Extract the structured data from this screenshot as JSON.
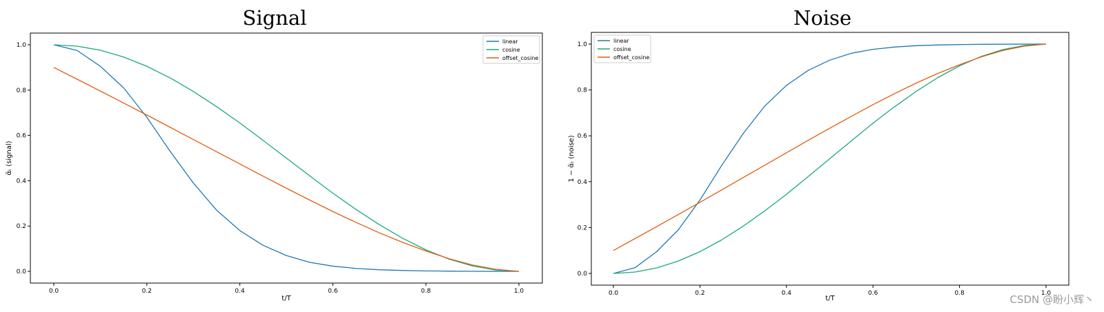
{
  "figure": {
    "watermark": "CSDN @盼小辉丶"
  },
  "chart_data": [
    {
      "type": "line",
      "title": "Signal",
      "xlabel": "t/T",
      "ylabel": "ᾱₜ (signal)",
      "xlim": [
        0.0,
        1.0
      ],
      "ylim": [
        0.0,
        1.0
      ],
      "xticks": [
        "0.0",
        "0.2",
        "0.4",
        "0.6",
        "0.8",
        "1.0"
      ],
      "yticks": [
        "0.0",
        "0.2",
        "0.4",
        "0.6",
        "0.8",
        "1.0"
      ],
      "grid": false,
      "legend_position": "top-right",
      "x": [
        0.0,
        0.05,
        0.1,
        0.15,
        0.2,
        0.25,
        0.3,
        0.35,
        0.4,
        0.45,
        0.5,
        0.55,
        0.6,
        0.65,
        0.7,
        0.75,
        0.8,
        0.85,
        0.9,
        0.95,
        1.0
      ],
      "series": [
        {
          "name": "linear",
          "color": "#1f77b4",
          "values": [
            1.0,
            0.975,
            0.905,
            0.81,
            0.68,
            0.53,
            0.39,
            0.27,
            0.18,
            0.115,
            0.07,
            0.04,
            0.023,
            0.013,
            0.007,
            0.004,
            0.002,
            0.001,
            0.0005,
            0.0002,
            0.0
          ]
        },
        {
          "name": "cosine",
          "color": "#19a979",
          "values": [
            1.0,
            0.994,
            0.976,
            0.946,
            0.905,
            0.854,
            0.794,
            0.727,
            0.655,
            0.578,
            0.5,
            0.422,
            0.345,
            0.273,
            0.206,
            0.146,
            0.095,
            0.054,
            0.024,
            0.006,
            0.0
          ]
        },
        {
          "name": "offset_cosine",
          "color": "#e05c10",
          "values": [
            0.9,
            0.848,
            0.796,
            0.743,
            0.69,
            0.636,
            0.582,
            0.528,
            0.474,
            0.42,
            0.367,
            0.315,
            0.264,
            0.216,
            0.17,
            0.128,
            0.09,
            0.056,
            0.028,
            0.009,
            0.0
          ]
        }
      ]
    },
    {
      "type": "line",
      "title": "Noise",
      "xlabel": "t/T",
      "ylabel": "1 − ᾱₜ (noise)",
      "xlim": [
        0.0,
        1.0
      ],
      "ylim": [
        0.0,
        1.0
      ],
      "xticks": [
        "0.0",
        "0.2",
        "0.4",
        "0.6",
        "0.8",
        "1.0"
      ],
      "yticks": [
        "0.0",
        "0.2",
        "0.4",
        "0.6",
        "0.8",
        "1.0"
      ],
      "grid": false,
      "legend_position": "top-left",
      "x": [
        0.0,
        0.05,
        0.1,
        0.15,
        0.2,
        0.25,
        0.3,
        0.35,
        0.4,
        0.45,
        0.5,
        0.55,
        0.6,
        0.65,
        0.7,
        0.75,
        0.8,
        0.85,
        0.9,
        0.95,
        1.0
      ],
      "series": [
        {
          "name": "linear",
          "color": "#1f77b4",
          "values": [
            0.0,
            0.025,
            0.095,
            0.19,
            0.32,
            0.47,
            0.61,
            0.73,
            0.82,
            0.885,
            0.93,
            0.96,
            0.977,
            0.987,
            0.993,
            0.996,
            0.998,
            0.999,
            0.9995,
            0.9998,
            1.0
          ]
        },
        {
          "name": "cosine",
          "color": "#19a979",
          "values": [
            0.0,
            0.006,
            0.024,
            0.054,
            0.095,
            0.146,
            0.206,
            0.273,
            0.345,
            0.422,
            0.5,
            0.578,
            0.655,
            0.727,
            0.794,
            0.854,
            0.905,
            0.946,
            0.976,
            0.994,
            1.0
          ]
        },
        {
          "name": "offset_cosine",
          "color": "#e05c10",
          "values": [
            0.1,
            0.152,
            0.204,
            0.257,
            0.31,
            0.364,
            0.418,
            0.472,
            0.526,
            0.58,
            0.633,
            0.685,
            0.736,
            0.784,
            0.83,
            0.872,
            0.91,
            0.944,
            0.972,
            0.991,
            1.0
          ]
        }
      ]
    }
  ]
}
